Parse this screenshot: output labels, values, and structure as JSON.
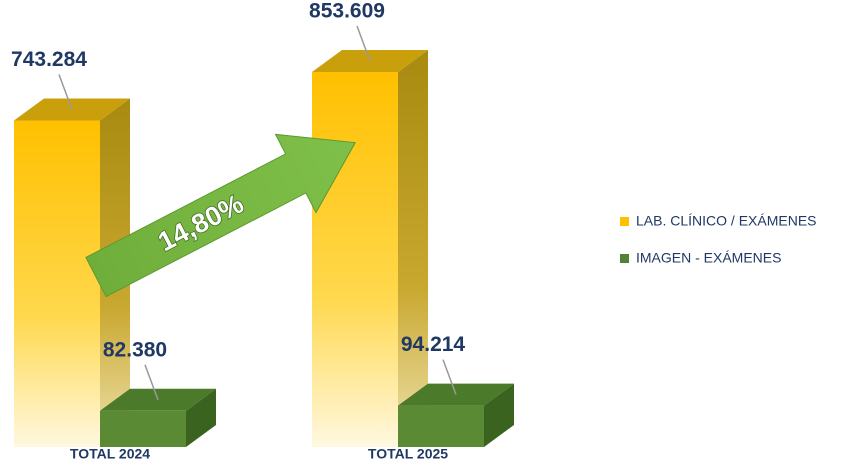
{
  "chart_data": {
    "type": "bar3d",
    "categories": [
      "TOTAL  2024",
      "TOTAL 2025"
    ],
    "series": [
      {
        "name": "LAB. CLÍNICO / EXÁMENES",
        "color": "#ffc000",
        "values": [
          743284,
          853609
        ],
        "value_labels": [
          "743.284",
          "853.609"
        ]
      },
      {
        "name": "IMAGEN - EXÁMENES",
        "color": "#548235",
        "values": [
          82380,
          94214
        ],
        "value_labels": [
          "82.380",
          "94.214"
        ]
      }
    ],
    "annotation": "14,80%",
    "legend": "right"
  }
}
